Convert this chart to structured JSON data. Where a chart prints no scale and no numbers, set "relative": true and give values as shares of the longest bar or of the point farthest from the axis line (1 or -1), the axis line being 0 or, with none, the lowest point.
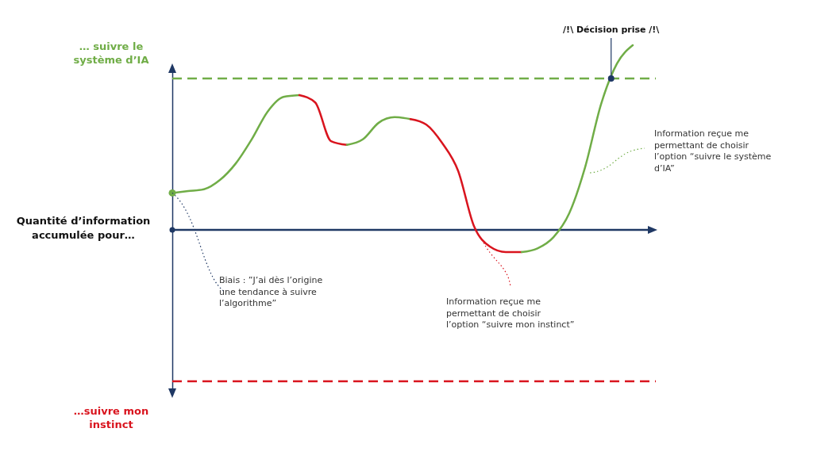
{
  "chart_data": {
    "type": "line",
    "relative": true,
    "ylabel": "Quantité d’information\naccumulée pour…",
    "categories": [
      null,
      null,
      null,
      null,
      null,
      null,
      null,
      null,
      null,
      null,
      null,
      null,
      null,
      null,
      null,
      null,
      null,
      null,
      null,
      null,
      null,
      null,
      null,
      null,
      null,
      null,
      null,
      null,
      null,
      null
    ],
    "series": [
      {
        "color": "#70ad47",
        "values": [
          0.2,
          0.21,
          0.22,
          0.27,
          0.36,
          0.49,
          0.64,
          0.72,
          0.73,
          null,
          null,
          null,
          null,
          null,
          null,
          null,
          null,
          null,
          null,
          null,
          null,
          null,
          null,
          null,
          null,
          null,
          null,
          null,
          null,
          null
        ]
      },
      {
        "color": "#d9141e",
        "values": [
          null,
          null,
          null,
          null,
          null,
          null,
          null,
          null,
          0.73,
          0.69,
          0.48,
          0.46,
          null,
          null,
          null,
          null,
          null,
          null,
          null,
          null,
          null,
          null,
          null,
          null,
          null,
          null,
          null,
          null,
          null,
          null
        ]
      },
      {
        "color": "#70ad47",
        "values": [
          null,
          null,
          null,
          null,
          null,
          null,
          null,
          null,
          null,
          null,
          null,
          0.46,
          0.49,
          0.58,
          0.61,
          0.6,
          null,
          null,
          null,
          null,
          null,
          null,
          null,
          null,
          null,
          null,
          null,
          null,
          null,
          null
        ]
      },
      {
        "color": "#d9141e",
        "values": [
          null,
          null,
          null,
          null,
          null,
          null,
          null,
          null,
          null,
          null,
          null,
          null,
          null,
          null,
          null,
          0.6,
          0.57,
          0.47,
          0.32,
          0.02,
          -0.09,
          -0.12,
          -0.12,
          null,
          null,
          null,
          null,
          null,
          null,
          null
        ]
      },
      {
        "color": "#70ad47",
        "values": [
          null,
          null,
          null,
          null,
          null,
          null,
          null,
          null,
          null,
          null,
          null,
          null,
          null,
          null,
          null,
          null,
          null,
          null,
          null,
          null,
          null,
          null,
          -0.12,
          -0.1,
          -0.04,
          0.09,
          0.34,
          0.68,
          0.9,
          1.0
        ]
      }
    ],
    "ref_lines": [
      {
        "axis": "y",
        "value": 0,
        "color": "#1f3864",
        "line_style": "solid"
      },
      {
        "axis": "y",
        "value": 0.82,
        "label": "… suivre le\nsystème d’IA",
        "color": "#70ad47",
        "line_style": "dashed"
      },
      {
        "axis": "y",
        "value": -0.82,
        "label": "…suivre mon\ninstinct",
        "color": "#d9141e",
        "line_style": "dashed"
      }
    ],
    "annotations": [
      "/!\\ Décision prise /!\\",
      "Biais : ”J’ai dès l’origine\nune tendance à suivre\nl’algorithme”",
      "Information reçue me\npermettant de choisir\nl’option “suivre mon instinct”",
      "Information reçue me\npermettant de choisir\nl’option “suivre le système\nd’IA”"
    ],
    "marker": "none",
    "line_style": "solid"
  }
}
